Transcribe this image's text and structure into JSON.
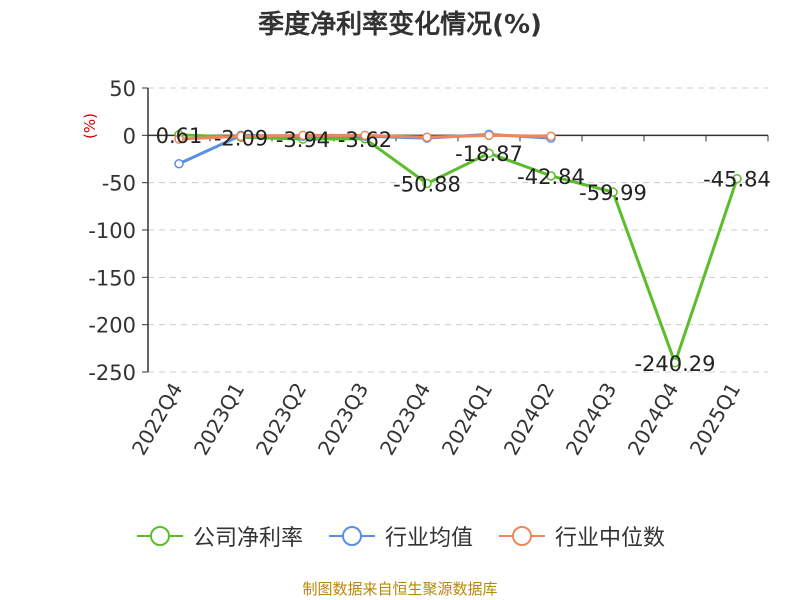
{
  "chart_data": {
    "type": "line",
    "title": "季度净利率变化情况(%)",
    "ylabel": "(%)",
    "ylim": [
      -250,
      50
    ],
    "yticks": [
      50,
      0,
      -50,
      -100,
      -150,
      -200,
      -250
    ],
    "categories": [
      "2022Q4",
      "2023Q1",
      "2023Q2",
      "2023Q3",
      "2023Q4",
      "2024Q1",
      "2024Q2",
      "2024Q3",
      "2024Q4",
      "2025Q1"
    ],
    "series": [
      {
        "name": "公司净利率",
        "color": "#5bbd2b",
        "values": [
          0.61,
          -2.09,
          -3.94,
          -3.62,
          -50.88,
          -18.87,
          -42.84,
          -59.99,
          -240.29,
          -45.84
        ],
        "labels": [
          "0.61",
          "-2.09",
          "-3.94",
          "-3.62",
          "-50.88",
          "-18.87",
          "-42.84",
          "-59.99",
          "-240.29",
          "-45.84"
        ]
      },
      {
        "name": "行业均值",
        "color": "#5b8ee6",
        "values": [
          -30,
          0,
          -1,
          -1,
          -3,
          1,
          -3,
          null,
          null,
          null
        ]
      },
      {
        "name": "行业中位数",
        "color": "#f0875a",
        "values": [
          -4,
          -1,
          0,
          0,
          -2,
          0,
          -1,
          null,
          null,
          null
        ]
      }
    ],
    "grid": true,
    "legend_position": "bottom"
  },
  "source_text": "制图数据来自恒生聚源数据库"
}
